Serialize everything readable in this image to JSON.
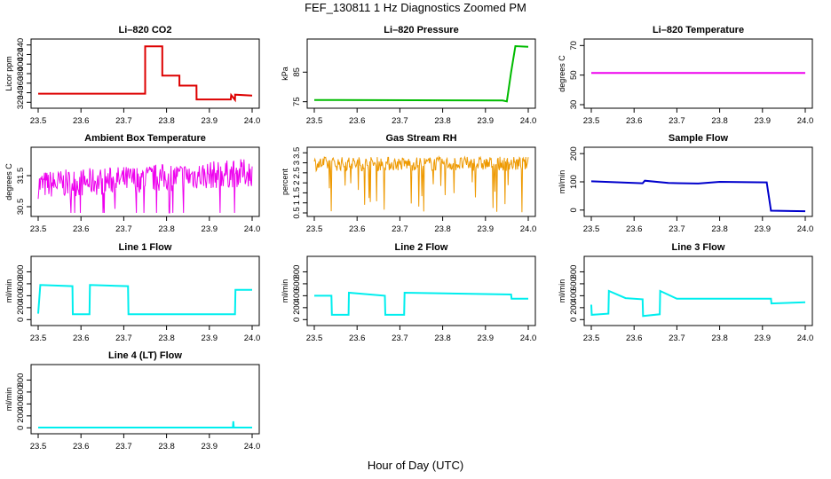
{
  "title": "FEF_130811  1 Hz Diagnostics Zoomed PM",
  "xlabel": "Hour of Day (UTC)",
  "x_ticks": [
    "23.5",
    "23.6",
    "23.7",
    "23.8",
    "23.9",
    "24.0"
  ],
  "colors": {
    "red": "#dd0000",
    "green": "#00bb00",
    "magenta": "#ee00ee",
    "orange": "#ee9900",
    "blue": "#0000cc",
    "cyan": "#00eeee"
  },
  "chart_data": [
    {
      "type": "line",
      "title": "Li–820 CO2",
      "ylabel": "Licor ppm",
      "xlim": [
        23.5,
        24.0
      ],
      "ylim": [
        315,
        445
      ],
      "yticks": [
        320,
        340,
        360,
        380,
        400,
        420,
        440
      ],
      "color": "red",
      "series": [
        {
          "x": [
            23.5,
            23.75,
            23.7501,
            23.79,
            23.7901,
            23.83,
            23.8301,
            23.87,
            23.8701,
            23.95,
            23.951,
            23.96,
            23.9601,
            24.0
          ],
          "y": [
            338,
            338,
            437,
            437,
            376,
            376,
            355,
            355,
            326,
            326,
            335,
            325,
            336,
            334
          ]
        }
      ]
    },
    {
      "type": "line",
      "title": "Li–820 Pressure",
      "ylabel": "kPa",
      "xlim": [
        23.5,
        24.0
      ],
      "ylim": [
        74,
        95
      ],
      "yticks": [
        75,
        85
      ],
      "color": "green",
      "series": [
        {
          "x": [
            23.5,
            23.94,
            23.95,
            23.96,
            23.97,
            24.0
          ],
          "y": [
            75.6,
            75.4,
            75.1,
            85,
            93.8,
            93.6
          ]
        }
      ]
    },
    {
      "type": "line",
      "title": "Li–820 Temperature",
      "ylabel": "degrees C",
      "xlim": [
        23.5,
        24.0
      ],
      "ylim": [
        30,
        72
      ],
      "yticks": [
        30,
        50,
        70
      ],
      "color": "magenta",
      "series": [
        {
          "x": [
            23.5,
            24.0
          ],
          "y": [
            51.5,
            51.5
          ]
        }
      ]
    },
    {
      "type": "line",
      "title": "Ambient Box Temperature",
      "ylabel": "degrees C",
      "xlim": [
        23.5,
        24.0
      ],
      "ylim": [
        30.3,
        32.3
      ],
      "yticks": [
        30.5,
        31.5
      ],
      "color": "magenta",
      "style": "noisy",
      "series": [
        {
          "x": [
            23.5,
            24.0
          ],
          "y": [
            31.2,
            31.6
          ],
          "spread": 0.45
        }
      ]
    },
    {
      "type": "line",
      "title": "Gas Stream RH",
      "ylabel": "percent",
      "xlim": [
        23.5,
        24.0
      ],
      "ylim": [
        0.5,
        3.6
      ],
      "yticks": [
        0.5,
        1.0,
        1.5,
        2.0,
        2.5,
        3.0,
        3.5
      ],
      "color": "orange",
      "style": "noisy",
      "series": [
        {
          "x": [
            23.5,
            24.0
          ],
          "y": [
            2.95,
            2.95
          ],
          "spread": 0.35
        }
      ]
    },
    {
      "type": "line",
      "title": "Sample Flow",
      "ylabel": "ml/min",
      "xlim": [
        23.5,
        24.0
      ],
      "ylim": [
        -10,
        210
      ],
      "yticks": [
        0,
        100,
        200
      ],
      "color": "blue",
      "series": [
        {
          "x": [
            23.5,
            23.62,
            23.625,
            23.68,
            23.75,
            23.8,
            23.91,
            23.92,
            24.0
          ],
          "y": [
            102,
            95,
            104,
            96,
            94,
            100,
            98,
            -2,
            -4
          ]
        }
      ]
    },
    {
      "type": "line",
      "title": "Line 1 Flow",
      "ylabel": "ml/min",
      "xlim": [
        23.5,
        24.0
      ],
      "ylim": [
        -40,
        1000
      ],
      "yticks": [
        0,
        200,
        400,
        600,
        800
      ],
      "color": "cyan",
      "series": [
        {
          "x": [
            23.5,
            23.505,
            23.58,
            23.581,
            23.62,
            23.621,
            23.71,
            23.711,
            23.96,
            23.961,
            24.0
          ],
          "y": [
            100,
            580,
            560,
            90,
            90,
            580,
            560,
            90,
            90,
            500,
            500
          ]
        }
      ]
    },
    {
      "type": "line",
      "title": "Line 2 Flow",
      "ylabel": "ml/min",
      "xlim": [
        23.5,
        24.0
      ],
      "ylim": [
        -40,
        1000
      ],
      "yticks": [
        0,
        200,
        400,
        600,
        800
      ],
      "color": "cyan",
      "series": [
        {
          "x": [
            23.5,
            23.54,
            23.541,
            23.58,
            23.581,
            23.665,
            23.666,
            23.71,
            23.711,
            23.96,
            23.961,
            24.0
          ],
          "y": [
            400,
            400,
            80,
            80,
            450,
            400,
            80,
            80,
            450,
            420,
            350,
            350
          ]
        }
      ]
    },
    {
      "type": "line",
      "title": "Line 3 Flow",
      "ylabel": "ml/min",
      "xlim": [
        23.5,
        24.0
      ],
      "ylim": [
        -40,
        1000
      ],
      "yticks": [
        0,
        200,
        400,
        600,
        800
      ],
      "color": "cyan",
      "series": [
        {
          "x": [
            23.5,
            23.501,
            23.54,
            23.541,
            23.58,
            23.62,
            23.621,
            23.66,
            23.661,
            23.7,
            23.92,
            23.921,
            24.0
          ],
          "y": [
            250,
            80,
            100,
            480,
            360,
            340,
            60,
            90,
            480,
            350,
            350,
            270,
            290
          ]
        }
      ]
    },
    {
      "type": "line",
      "title": "Line 4 (LT) Flow",
      "ylabel": "ml/min",
      "xlim": [
        23.5,
        24.0
      ],
      "ylim": [
        -40,
        1000
      ],
      "yticks": [
        0,
        200,
        400,
        600,
        800
      ],
      "color": "cyan",
      "series": [
        {
          "x": [
            23.5,
            23.955,
            23.956,
            23.957,
            24.0
          ],
          "y": [
            5,
            5,
            110,
            5,
            5
          ]
        }
      ]
    }
  ]
}
